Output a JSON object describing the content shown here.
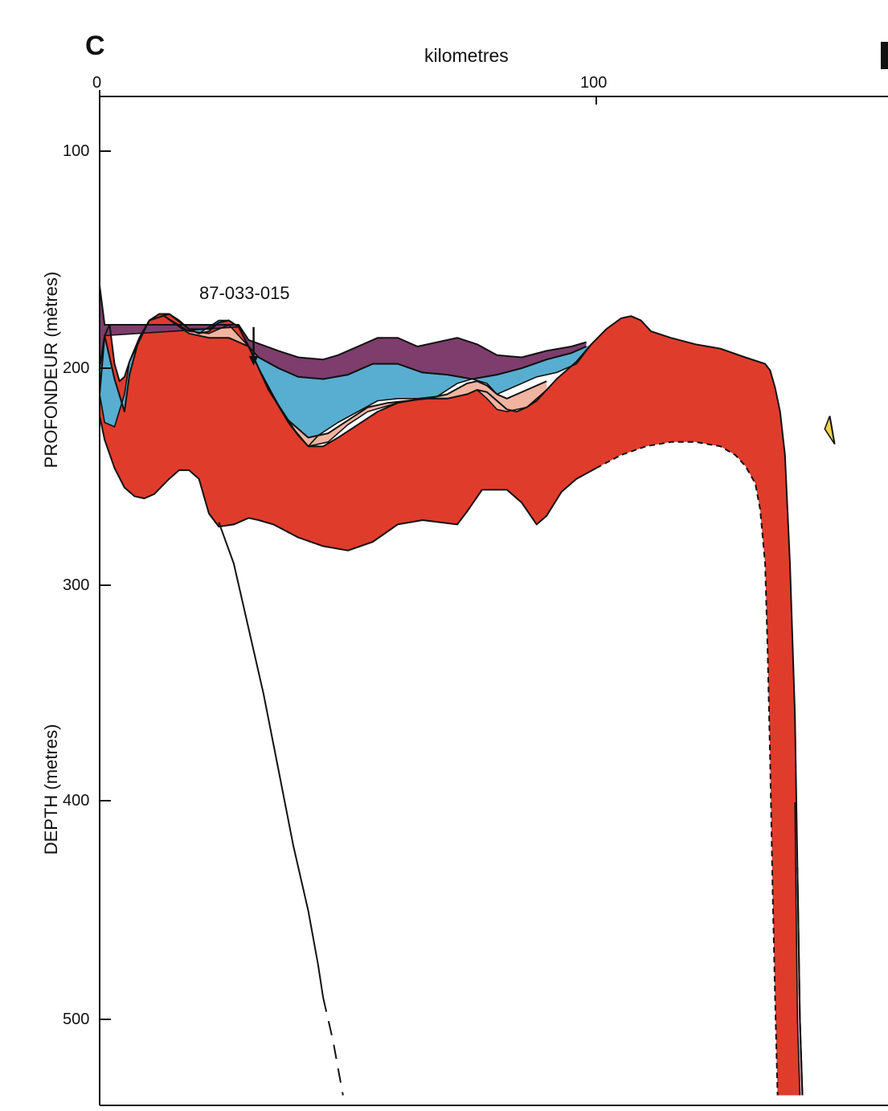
{
  "panel": {
    "letter": "C"
  },
  "chart_data": {
    "type": "area",
    "xlabel": "kilometres",
    "ylabel_fr": "PROFONDEUR (mètres)",
    "ylabel_en": "DEPTH (metres)",
    "xlim": [
      0,
      158
    ],
    "ylim": [
      75,
      535
    ],
    "y_inverted": true,
    "x_ticks": [
      0,
      100
    ],
    "y_ticks": [
      100,
      200,
      300,
      400,
      500
    ],
    "annotations": [
      {
        "text": "87-033-015",
        "x": 31,
        "y": 184
      }
    ],
    "colors": {
      "red": "#e03c2c",
      "blue": "#58aed0",
      "pink": "#f1b4a0",
      "purple": "#7e3d6c",
      "yellow": "#f2d34a",
      "lightpink": "#f3b8c4",
      "line": "#111111"
    },
    "layers": [
      {
        "color": "red",
        "top": [
          [
            0,
            212
          ],
          [
            1,
            185
          ],
          [
            2,
            180
          ],
          [
            3,
            198
          ],
          [
            4,
            206
          ],
          [
            5,
            204
          ],
          [
            6,
            197
          ],
          [
            8,
            186
          ],
          [
            10,
            178
          ],
          [
            12,
            175
          ],
          [
            14,
            175
          ],
          [
            16,
            178
          ],
          [
            18,
            182
          ],
          [
            20,
            184
          ],
          [
            22,
            183
          ],
          [
            24,
            179
          ],
          [
            26,
            178
          ],
          [
            28,
            181
          ],
          [
            30,
            190
          ],
          [
            32,
            200
          ],
          [
            34,
            209
          ],
          [
            36,
            217
          ],
          [
            38,
            225
          ],
          [
            40,
            231
          ],
          [
            42,
            236
          ],
          [
            45,
            236
          ],
          [
            48,
            232
          ],
          [
            52,
            226
          ],
          [
            56,
            220
          ],
          [
            60,
            216
          ],
          [
            65,
            214
          ],
          [
            70,
            214
          ],
          [
            74,
            212
          ],
          [
            76,
            210
          ],
          [
            78,
            211
          ],
          [
            80,
            215
          ],
          [
            82,
            219
          ],
          [
            84,
            220
          ],
          [
            86,
            218
          ],
          [
            88,
            215
          ],
          [
            90,
            210
          ],
          [
            92,
            205
          ],
          [
            94,
            201
          ],
          [
            96,
            197
          ],
          [
            99,
            189
          ],
          [
            102,
            182
          ],
          [
            105,
            177
          ],
          [
            107,
            176
          ],
          [
            109,
            178
          ],
          [
            111,
            183
          ],
          [
            115,
            186
          ],
          [
            120,
            189
          ],
          [
            125,
            191
          ],
          [
            130,
            195
          ],
          [
            134,
            198
          ],
          [
            135,
            201
          ],
          [
            136,
            209
          ],
          [
            137,
            220
          ],
          [
            138,
            240
          ],
          [
            139,
            290
          ],
          [
            140,
            360
          ],
          [
            140.5,
            430
          ],
          [
            141,
            500
          ],
          [
            141.5,
            535
          ]
        ],
        "bottom": [
          [
            0,
            222
          ],
          [
            1,
            233
          ],
          [
            3,
            246
          ],
          [
            5,
            255
          ],
          [
            7,
            259
          ],
          [
            9,
            260
          ],
          [
            11,
            258
          ],
          [
            14,
            251
          ],
          [
            16,
            247
          ],
          [
            18,
            247
          ],
          [
            20,
            251
          ],
          [
            21,
            259
          ],
          [
            22,
            267
          ],
          [
            24,
            273
          ],
          [
            27,
            272
          ],
          [
            30,
            269
          ],
          [
            32,
            270
          ],
          [
            35,
            272
          ],
          [
            40,
            278
          ],
          [
            45,
            282
          ],
          [
            50,
            284
          ],
          [
            55,
            280
          ],
          [
            60,
            272
          ],
          [
            65,
            270
          ],
          [
            72,
            272
          ],
          [
            74,
            266
          ],
          [
            77,
            256
          ],
          [
            82,
            256
          ],
          [
            85,
            262
          ],
          [
            88,
            272
          ],
          [
            90,
            268
          ],
          [
            93,
            257
          ],
          [
            96,
            251
          ],
          [
            100,
            246
          ],
          [
            105,
            240
          ],
          [
            110,
            236
          ],
          [
            115,
            234
          ],
          [
            120,
            234
          ],
          [
            125,
            236
          ],
          [
            128,
            240
          ],
          [
            130,
            245
          ],
          [
            132,
            253
          ],
          [
            133,
            265
          ],
          [
            134,
            290
          ],
          [
            134.5,
            330
          ],
          [
            135,
            380
          ],
          [
            135.5,
            440
          ],
          [
            136,
            490
          ],
          [
            136.5,
            535
          ]
        ],
        "bottom_dashed_from_x": 100
      },
      {
        "color": "blue",
        "top": [
          [
            0,
            200
          ],
          [
            1,
            185
          ],
          [
            3,
            205
          ],
          [
            5,
            220
          ],
          [
            6,
            203
          ],
          [
            8,
            186
          ],
          [
            10,
            178
          ],
          [
            14,
            175
          ],
          [
            18,
            182
          ],
          [
            22,
            182
          ],
          [
            24,
            179
          ],
          [
            26,
            178
          ],
          [
            28,
            181
          ],
          [
            30,
            190
          ],
          [
            32,
            195
          ],
          [
            36,
            200
          ],
          [
            40,
            204
          ],
          [
            45,
            205
          ],
          [
            50,
            203
          ],
          [
            55,
            198
          ],
          [
            60,
            198
          ],
          [
            65,
            202
          ],
          [
            70,
            203
          ],
          [
            75,
            205
          ],
          [
            80,
            203
          ],
          [
            85,
            200
          ],
          [
            90,
            196
          ],
          [
            95,
            193
          ],
          [
            98,
            190
          ]
        ],
        "bottom": [
          [
            0,
            212
          ],
          [
            1,
            225
          ],
          [
            3,
            227
          ],
          [
            5,
            212
          ],
          [
            6,
            197
          ],
          [
            10,
            178
          ],
          [
            14,
            175
          ],
          [
            18,
            182
          ],
          [
            20,
            184
          ],
          [
            22,
            181
          ],
          [
            24,
            178
          ],
          [
            26,
            178
          ],
          [
            28,
            181
          ],
          [
            30,
            190
          ],
          [
            32,
            200
          ],
          [
            36,
            217
          ],
          [
            40,
            231
          ],
          [
            42,
            236
          ],
          [
            44,
            231
          ],
          [
            48,
            225
          ],
          [
            52,
            220
          ],
          [
            56,
            215
          ],
          [
            60,
            214
          ],
          [
            64,
            214
          ],
          [
            68,
            213
          ],
          [
            72,
            207
          ],
          [
            75,
            205
          ],
          [
            78,
            207
          ],
          [
            80,
            212
          ],
          [
            84,
            208
          ],
          [
            88,
            204
          ],
          [
            92,
            202
          ],
          [
            96,
            198
          ],
          [
            99,
            189
          ]
        ]
      },
      {
        "color": "pink",
        "top": [
          [
            13,
            176
          ],
          [
            18,
            184
          ],
          [
            22,
            186
          ],
          [
            26,
            186
          ],
          [
            30,
            190
          ],
          [
            34,
            210
          ],
          [
            38,
            224
          ],
          [
            42,
            232
          ],
          [
            46,
            230
          ],
          [
            50,
            224
          ],
          [
            54,
            218
          ],
          [
            58,
            216
          ],
          [
            62,
            215
          ],
          [
            66,
            214
          ],
          [
            70,
            212
          ],
          [
            74,
            207
          ],
          [
            76,
            206
          ],
          [
            78,
            208
          ],
          [
            80,
            212
          ],
          [
            82,
            214
          ],
          [
            86,
            210
          ],
          [
            90,
            206
          ]
        ],
        "bottom": [
          [
            13,
            176
          ],
          [
            18,
            183
          ],
          [
            22,
            184
          ],
          [
            26,
            180
          ],
          [
            30,
            190
          ],
          [
            34,
            210
          ],
          [
            38,
            225
          ],
          [
            42,
            236
          ],
          [
            46,
            234
          ],
          [
            50,
            226
          ],
          [
            54,
            220
          ],
          [
            60,
            216
          ],
          [
            65,
            214
          ],
          [
            70,
            214
          ],
          [
            74,
            212
          ],
          [
            76,
            210
          ],
          [
            78,
            214
          ],
          [
            80,
            219
          ],
          [
            82,
            220
          ],
          [
            86,
            218
          ],
          [
            90,
            210
          ]
        ]
      },
      {
        "color": "purple",
        "top": [
          [
            0,
            162
          ],
          [
            1,
            180
          ],
          [
            28,
            180
          ],
          [
            30,
            187
          ],
          [
            36,
            192
          ],
          [
            40,
            195
          ],
          [
            45,
            196
          ],
          [
            48,
            194
          ],
          [
            52,
            190
          ],
          [
            56,
            186
          ],
          [
            60,
            186
          ],
          [
            64,
            190
          ],
          [
            68,
            188
          ],
          [
            72,
            186
          ],
          [
            76,
            189
          ],
          [
            80,
            194
          ],
          [
            85,
            195
          ],
          [
            90,
            192
          ],
          [
            95,
            190
          ],
          [
            98,
            188
          ]
        ],
        "bottom": [
          [
            0,
            200
          ],
          [
            1,
            185
          ],
          [
            28,
            181
          ],
          [
            30,
            190
          ],
          [
            32,
            195
          ],
          [
            36,
            200
          ],
          [
            40,
            204
          ],
          [
            45,
            205
          ],
          [
            50,
            203
          ],
          [
            55,
            198
          ],
          [
            60,
            198
          ],
          [
            65,
            202
          ],
          [
            70,
            203
          ],
          [
            75,
            205
          ],
          [
            80,
            203
          ],
          [
            85,
            200
          ],
          [
            90,
            196
          ],
          [
            95,
            193
          ],
          [
            98,
            190
          ]
        ]
      },
      {
        "color": "yellow",
        "top": [
          [
            147,
            222
          ],
          [
            148,
            235
          ]
        ],
        "bottom": [
          [
            147,
            222
          ],
          [
            146,
            228
          ],
          [
            148,
            235
          ]
        ]
      },
      {
        "color": "lightpink",
        "top": [
          [
            140.5,
            430
          ],
          [
            141,
            500
          ],
          [
            141.5,
            535
          ]
        ],
        "bottom": [
          [
            140,
            400
          ],
          [
            140.5,
            500
          ],
          [
            141,
            535
          ]
        ]
      }
    ],
    "lines": [
      {
        "name": "",
        "style": "solid",
        "points": [
          [
            24,
            271
          ],
          [
            27,
            290
          ],
          [
            30,
            320
          ],
          [
            33,
            350
          ],
          [
            36,
            385
          ],
          [
            39,
            420
          ],
          [
            42,
            450
          ],
          [
            44,
            475
          ],
          [
            45,
            490
          ]
        ]
      },
      {
        "name": "",
        "style": "dashed",
        "points": [
          [
            45,
            490
          ],
          [
            47,
            510
          ],
          [
            49,
            535
          ]
        ]
      }
    ]
  }
}
